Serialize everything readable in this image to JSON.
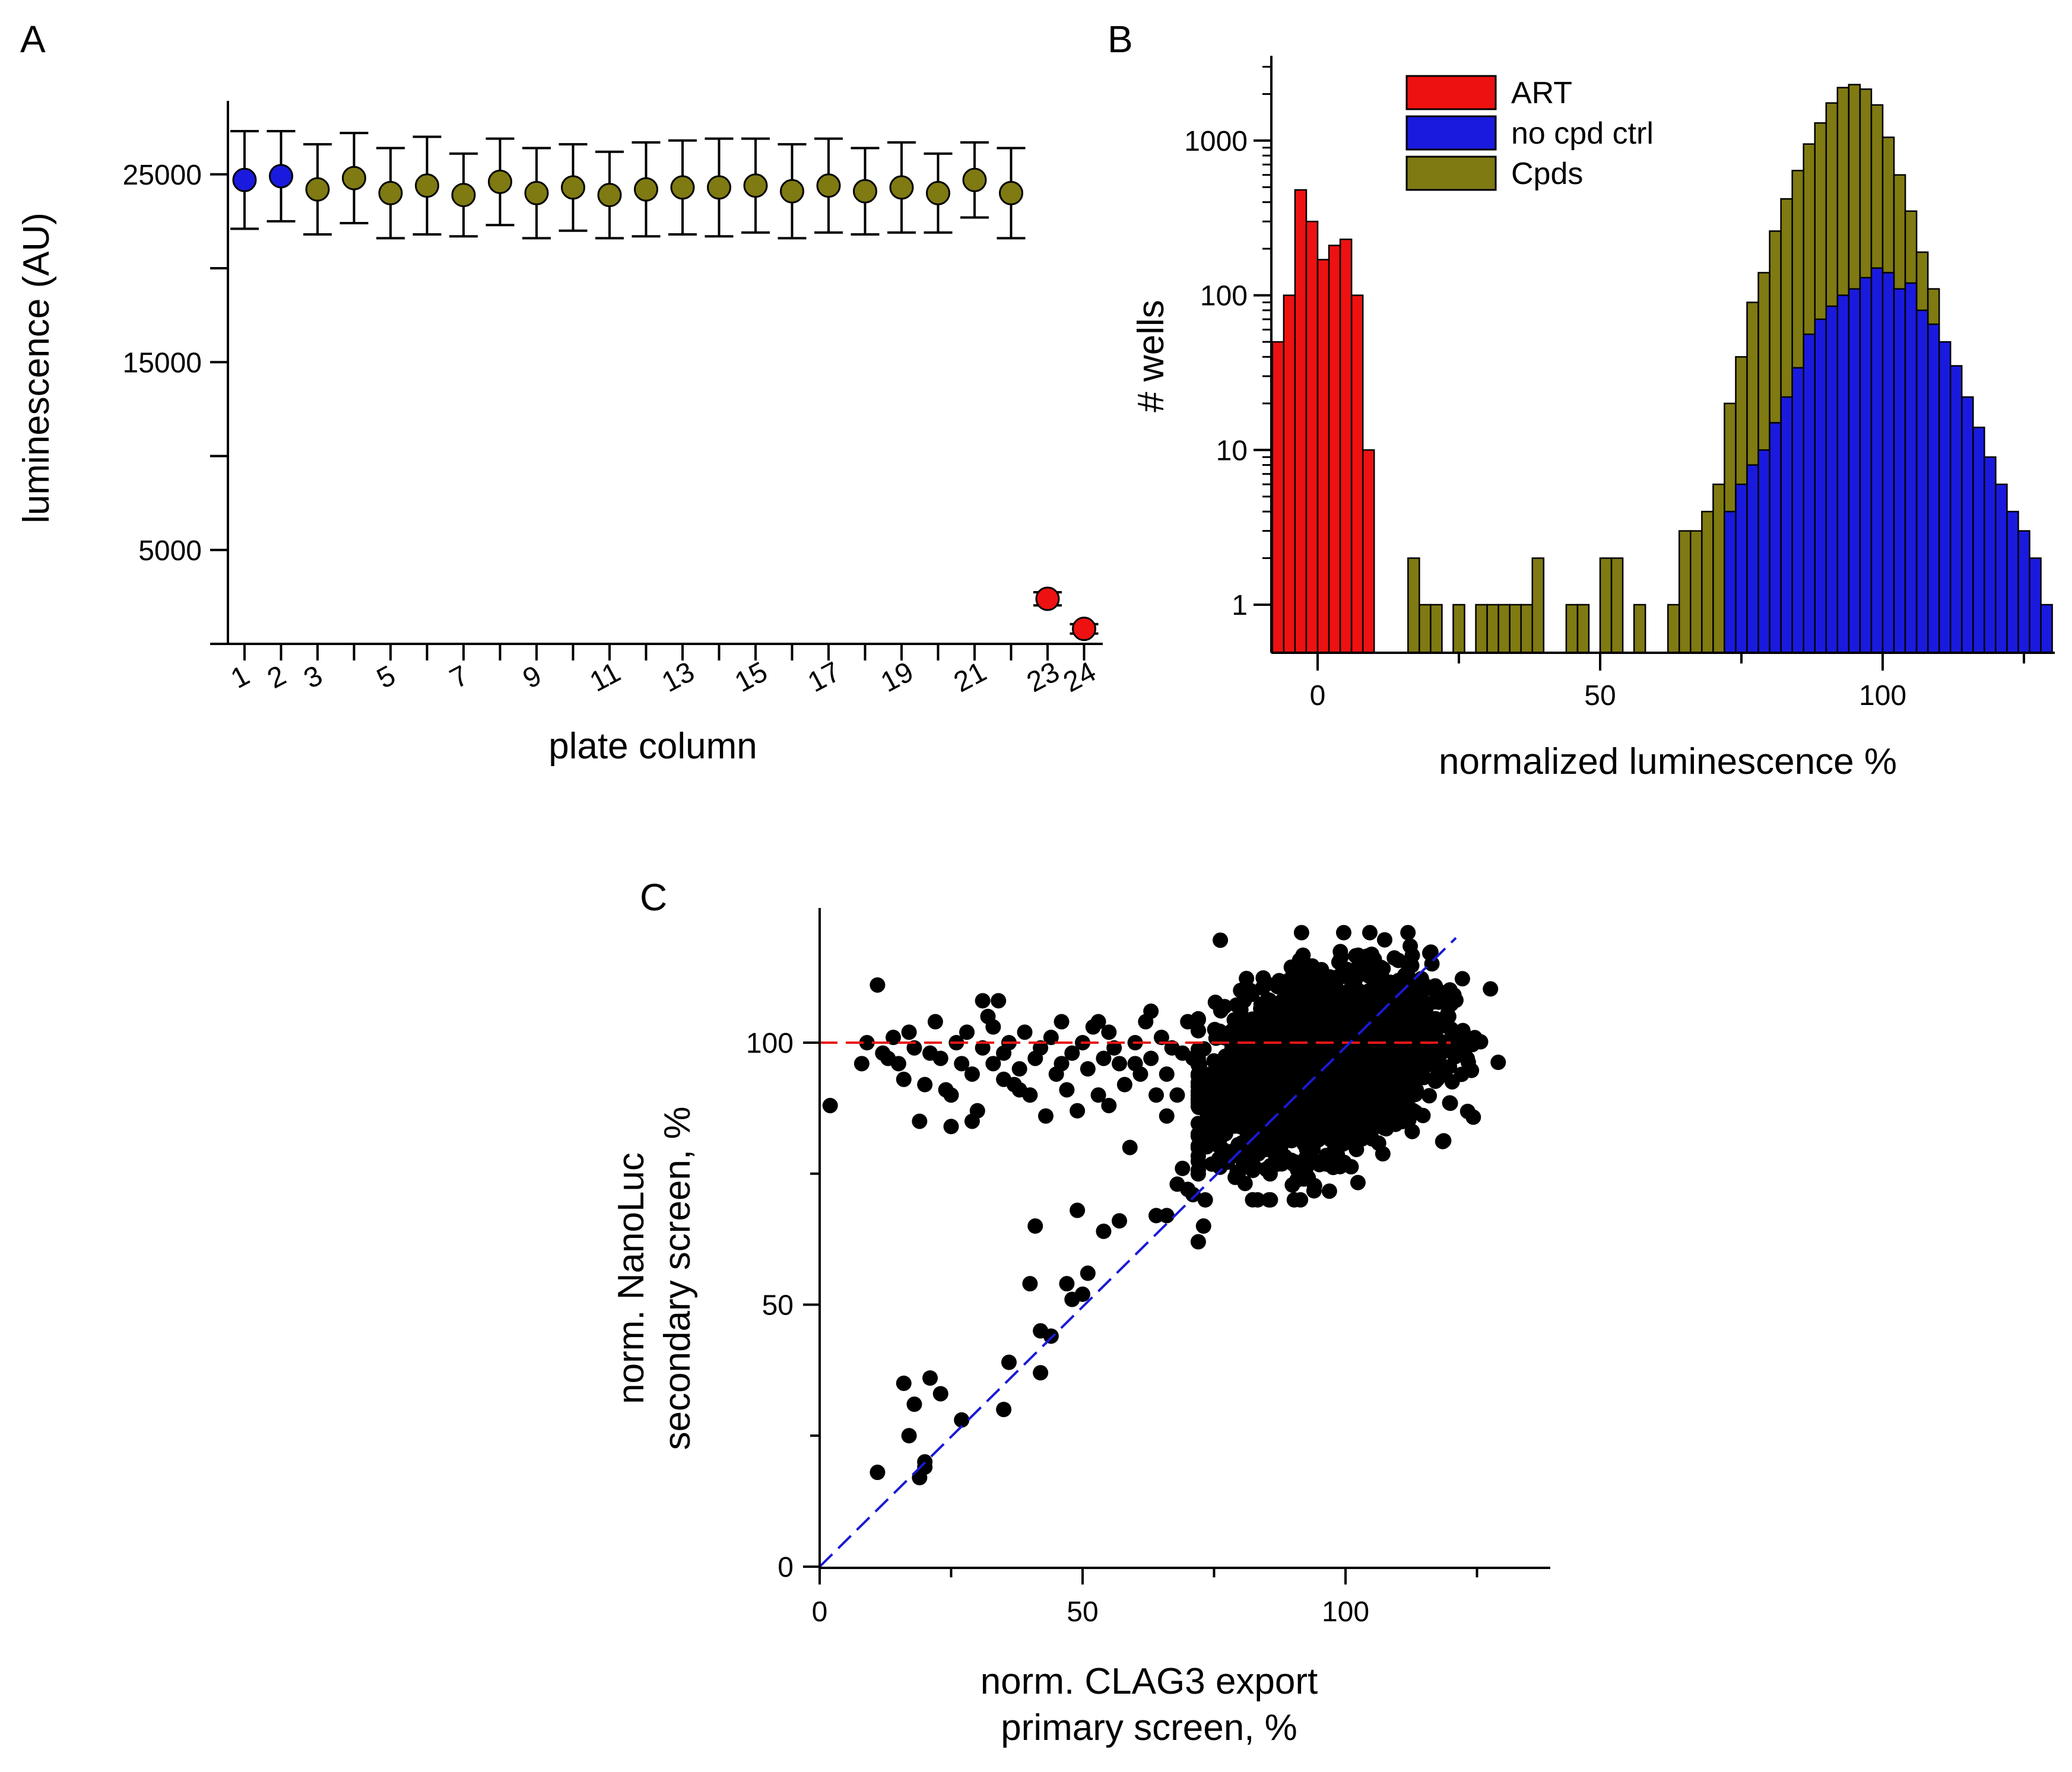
{
  "colors": {
    "blue": "#1a1adf",
    "olive": "#7f7a12",
    "red": "#ee1111",
    "black": "#000000",
    "redline": "#e81616",
    "blueline": "#1a1ad6"
  },
  "panels": {
    "a": "A",
    "b": "B",
    "c": "C"
  },
  "chart_data": [
    {
      "id": "A",
      "type": "scatter",
      "xlabel": "plate column",
      "ylabel": "luminescence (AU)",
      "ylim": [
        0,
        28900
      ],
      "yticks": [
        5000,
        15000,
        25000
      ],
      "ytick_labels": [
        "5000",
        "15000",
        "25000"
      ],
      "yminor_ticks": [
        0,
        10000,
        20000
      ],
      "xtick_labels": [
        "1",
        "2",
        "3",
        "5",
        "7",
        "9",
        "11",
        "13",
        "15",
        "17",
        "19",
        "21",
        "23",
        "24"
      ],
      "xtick_positions": [
        1,
        2,
        3,
        5,
        7,
        9,
        11,
        13,
        15,
        17,
        19,
        21,
        23,
        24
      ],
      "columns": [
        1,
        2,
        3,
        4,
        5,
        6,
        7,
        8,
        9,
        10,
        11,
        12,
        13,
        14,
        15,
        16,
        17,
        18,
        19,
        20,
        21,
        22,
        23,
        24
      ],
      "means": [
        24700,
        24900,
        24200,
        24800,
        24000,
        24400,
        23900,
        24600,
        24000,
        24300,
        23900,
        24200,
        24300,
        24300,
        24400,
        24100,
        24400,
        24100,
        24300,
        24000,
        24700,
        24000,
        2400,
        800
      ],
      "errors": [
        2600,
        2400,
        2400,
        2400,
        2400,
        2600,
        2200,
        2300,
        2400,
        2300,
        2300,
        2500,
        2500,
        2600,
        2500,
        2500,
        2500,
        2300,
        2400,
        2100,
        2000,
        2400,
        350,
        250
      ],
      "groups": [
        "no cpd ctrl",
        "no cpd ctrl",
        "Cpds",
        "Cpds",
        "Cpds",
        "Cpds",
        "Cpds",
        "Cpds",
        "Cpds",
        "Cpds",
        "Cpds",
        "Cpds",
        "Cpds",
        "Cpds",
        "Cpds",
        "Cpds",
        "Cpds",
        "Cpds",
        "Cpds",
        "Cpds",
        "Cpds",
        "Cpds",
        "ART",
        "ART"
      ]
    },
    {
      "id": "B",
      "type": "bar",
      "yscale": "log",
      "xlabel": "normalized luminescence %",
      "ylabel": "# wells",
      "xlim": [
        -8,
        131
      ],
      "ylim_log10": [
        -0.3,
        3.6
      ],
      "xticks": [
        0,
        50,
        100
      ],
      "xtick_labels": [
        "0",
        "50",
        "100"
      ],
      "xminor_ticks": [
        25,
        75,
        125
      ],
      "yticks": [
        1,
        10,
        100,
        1000
      ],
      "ytick_labels": [
        "1",
        "10",
        "100",
        "1000"
      ],
      "bin_width": 2,
      "legend": {
        "position": "top-left",
        "entries": [
          {
            "label": "ART",
            "series": "ART"
          },
          {
            "label": "no cpd ctrl",
            "series": "no cpd ctrl"
          },
          {
            "label": "Cpds",
            "series": "Cpds"
          }
        ]
      },
      "series": [
        {
          "name": "Cpds",
          "bin_starts": [
            16,
            18,
            20,
            24,
            28,
            30,
            32,
            34,
            36,
            38,
            44,
            46,
            50,
            52,
            56,
            62,
            64,
            66,
            68,
            70,
            72,
            74,
            76,
            78,
            80,
            82,
            84,
            86,
            88,
            90,
            92,
            94,
            96,
            98,
            100,
            102,
            104,
            106,
            108,
            110,
            112
          ],
          "counts": [
            2,
            1,
            1,
            1,
            1,
            1,
            1,
            1,
            1,
            2,
            1,
            1,
            2,
            2,
            1,
            1,
            3,
            3,
            4,
            6,
            20,
            40,
            90,
            140,
            260,
            420,
            640,
            950,
            1300,
            1750,
            2200,
            2300,
            2150,
            1700,
            1050,
            600,
            350,
            190,
            110,
            0,
            0
          ]
        },
        {
          "name": "no cpd ctrl",
          "bin_starts": [
            72,
            74,
            76,
            78,
            80,
            82,
            84,
            86,
            88,
            90,
            92,
            94,
            96,
            98,
            100,
            102,
            104,
            106,
            108,
            110,
            112,
            114,
            116,
            118,
            120,
            122,
            124,
            126,
            128
          ],
          "counts": [
            4,
            6,
            8,
            10,
            15,
            22,
            34,
            56,
            70,
            85,
            100,
            110,
            130,
            150,
            140,
            110,
            120,
            80,
            65,
            50,
            35,
            22,
            14,
            9,
            6,
            4,
            3,
            2,
            1
          ]
        },
        {
          "name": "ART",
          "bin_starts": [
            -8,
            -6,
            -4,
            -2,
            0,
            2,
            4,
            6,
            8
          ],
          "counts": [
            50,
            100,
            480,
            300,
            170,
            210,
            230,
            100,
            10
          ]
        }
      ]
    },
    {
      "id": "C",
      "type": "scatter",
      "xlabel": [
        "norm. CLAG3 export",
        "primary screen, %"
      ],
      "ylabel": [
        "norm. NanoLuc",
        "secondary screen, %"
      ],
      "xlim": [
        0,
        140
      ],
      "ylim": [
        0,
        124
      ],
      "xticks": [
        0,
        50,
        100
      ],
      "xtick_labels": [
        "0",
        "50",
        "100"
      ],
      "xminor_ticks": [
        25,
        75,
        125
      ],
      "yticks": [
        0,
        50,
        100
      ],
      "ytick_labels": [
        "0",
        "50",
        "100"
      ],
      "yminor_ticks": [
        25,
        75
      ],
      "reference_lines": [
        {
          "name": "red-dashed",
          "x": [
            0,
            120
          ],
          "y": [
            100,
            100
          ]
        },
        {
          "name": "blue-dashed",
          "x": [
            0,
            121
          ],
          "y": [
            0,
            120
          ]
        }
      ],
      "cluster": {
        "n": 2600,
        "x_mean": 96,
        "x_sd": 10,
        "y_mean": 96,
        "y_sd": 8
      },
      "points": [
        [
          2,
          88
        ],
        [
          11,
          18
        ],
        [
          11,
          111
        ],
        [
          16,
          35
        ],
        [
          17,
          25
        ],
        [
          18,
          31
        ],
        [
          19,
          17
        ],
        [
          20,
          19
        ],
        [
          20,
          20
        ],
        [
          21,
          36
        ],
        [
          23,
          33
        ],
        [
          27,
          28
        ],
        [
          35,
          30
        ],
        [
          36,
          39
        ],
        [
          40,
          54
        ],
        [
          41,
          65
        ],
        [
          42,
          45
        ],
        [
          42,
          37
        ],
        [
          44,
          44
        ],
        [
          47,
          54
        ],
        [
          48,
          51
        ],
        [
          49,
          68
        ],
        [
          50,
          52
        ],
        [
          51,
          56
        ],
        [
          54,
          64
        ],
        [
          57,
          66
        ],
        [
          64,
          67
        ],
        [
          66,
          67
        ],
        [
          69,
          76
        ],
        [
          70,
          72
        ],
        [
          71,
          71
        ],
        [
          72,
          62
        ],
        [
          73,
          65
        ],
        [
          68,
          73
        ],
        [
          8,
          96
        ],
        [
          9,
          100
        ],
        [
          12,
          98
        ],
        [
          14,
          101
        ],
        [
          15,
          96
        ],
        [
          16,
          93
        ],
        [
          17,
          102
        ],
        [
          18,
          99
        ],
        [
          19,
          85
        ],
        [
          20,
          92
        ],
        [
          21,
          98
        ],
        [
          22,
          104
        ],
        [
          23,
          97
        ],
        [
          24,
          91
        ],
        [
          25,
          84
        ],
        [
          26,
          100
        ],
        [
          27,
          96
        ],
        [
          28,
          102
        ],
        [
          29,
          94
        ],
        [
          30,
          87
        ],
        [
          31,
          99
        ],
        [
          32,
          105
        ],
        [
          33,
          96
        ],
        [
          34,
          108
        ],
        [
          35,
          98
        ],
        [
          36,
          100
        ],
        [
          37,
          92
        ],
        [
          38,
          95
        ],
        [
          39,
          102
        ],
        [
          40,
          90
        ],
        [
          41,
          97
        ],
        [
          42,
          99
        ],
        [
          43,
          86
        ],
        [
          44,
          101
        ],
        [
          45,
          94
        ],
        [
          46,
          104
        ],
        [
          47,
          91
        ],
        [
          48,
          98
        ],
        [
          49,
          87
        ],
        [
          50,
          100
        ],
        [
          51,
          95
        ],
        [
          52,
          103
        ],
        [
          53,
          90
        ],
        [
          54,
          97
        ],
        [
          55,
          88
        ],
        [
          56,
          99
        ],
        [
          57,
          96
        ],
        [
          58,
          92
        ],
        [
          59,
          80
        ],
        [
          60,
          100
        ],
        [
          61,
          94
        ],
        [
          62,
          104
        ],
        [
          63,
          97
        ],
        [
          64,
          90
        ],
        [
          65,
          101
        ],
        [
          66,
          86
        ],
        [
          67,
          99
        ],
        [
          13,
          97
        ],
        [
          29,
          85
        ],
        [
          38,
          91
        ],
        [
          31,
          108
        ],
        [
          33,
          103
        ],
        [
          46,
          96
        ],
        [
          25,
          90
        ],
        [
          35,
          93
        ],
        [
          55,
          102
        ],
        [
          53,
          104
        ],
        [
          60,
          96
        ],
        [
          63,
          106
        ],
        [
          66,
          94
        ],
        [
          68,
          90
        ],
        [
          69,
          98
        ],
        [
          70,
          104
        ],
        [
          71,
          97
        ],
        [
          72,
          94
        ]
      ]
    }
  ]
}
